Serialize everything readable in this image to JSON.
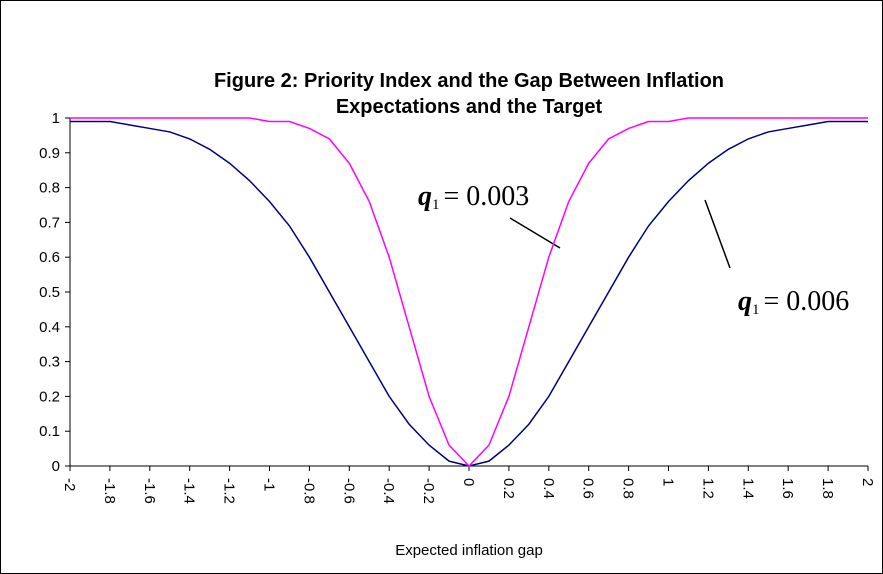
{
  "chart_data": {
    "type": "line",
    "title": [
      "Figure 2: Priority Index and the Gap Between Inflation",
      "Expectations and the Target"
    ],
    "x_label": "Expected inflation gap",
    "categories": [
      "-2",
      null,
      "-1.8",
      null,
      "-1.6",
      null,
      "-1.4",
      null,
      "-1.2",
      null,
      "-1",
      null,
      "-0.8",
      null,
      "-0.6",
      null,
      "-0.4",
      null,
      "-0.2",
      null,
      "0",
      null,
      "0.2",
      null,
      "0.4",
      null,
      "0.6",
      null,
      "0.8",
      null,
      "1",
      null,
      "1.2",
      null,
      "1.4",
      null,
      "1.6",
      null,
      "1.8",
      null,
      "2"
    ],
    "series": [
      {
        "name": "0.006",
        "color": "#000080",
        "values": [
          0.99,
          0.99,
          0.99,
          0.98,
          0.97,
          0.96,
          0.94,
          0.91,
          0.87,
          0.82,
          0.76,
          0.69,
          0.6,
          0.5,
          0.4,
          0.3,
          0.2,
          0.12,
          0.06,
          0.014,
          0,
          0.014,
          0.06,
          0.12,
          0.2,
          0.3,
          0.4,
          0.5,
          0.6,
          0.69,
          0.76,
          0.82,
          0.87,
          0.91,
          0.94,
          0.96,
          0.97,
          0.98,
          0.99,
          0.99,
          0.99
        ]
      },
      {
        "name": "0.003",
        "color": "#ff00ff",
        "values": [
          1,
          1,
          1,
          1,
          1,
          1,
          1,
          1,
          1,
          1,
          0.99,
          0.99,
          0.97,
          0.94,
          0.87,
          0.76,
          0.6,
          0.4,
          0.2,
          0.06,
          0,
          0.06,
          0.2,
          0.4,
          0.6,
          0.76,
          0.87,
          0.94,
          0.97,
          0.99,
          0.99,
          1,
          1,
          1,
          1,
          1,
          1,
          1,
          1,
          1,
          1
        ]
      }
    ],
    "annotations": [
      {
        "symbol": "q",
        "subscript": "1",
        "text": "= 0.003"
      },
      {
        "symbol": "q",
        "subscript": "1",
        "text": "= 0.006"
      }
    ],
    "ylim": [
      0,
      1
    ],
    "yticks": [
      0,
      0.1,
      0.2,
      0.3,
      0.4,
      0.5,
      0.6,
      0.7,
      0.8,
      0.9,
      1
    ]
  }
}
